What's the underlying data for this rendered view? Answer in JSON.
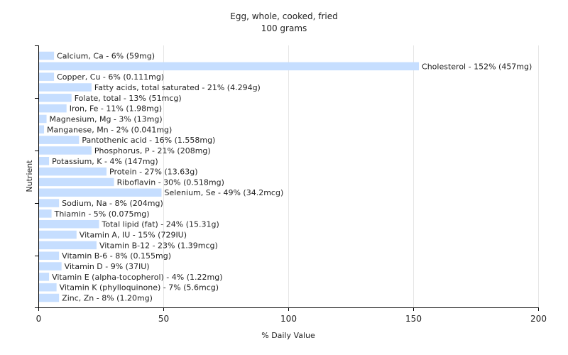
{
  "chart_data": {
    "type": "bar",
    "orientation": "horizontal",
    "title": "Egg, whole, cooked, fried",
    "subtitle": "100 grams",
    "xlabel": "% Daily Value",
    "ylabel": "Nutrient",
    "xlim": [
      0,
      200
    ],
    "xticks": [
      0,
      50,
      100,
      150,
      200
    ],
    "grid": true,
    "bar_color": "#c6deff",
    "categories": [
      "Calcium, Ca",
      "Cholesterol",
      "Copper, Cu",
      "Fatty acids, total saturated",
      "Folate, total",
      "Iron, Fe",
      "Magnesium, Mg",
      "Manganese, Mn",
      "Pantothenic acid",
      "Phosphorus, P",
      "Potassium, K",
      "Protein",
      "Riboflavin",
      "Selenium, Se",
      "Sodium, Na",
      "Thiamin",
      "Total lipid (fat)",
      "Vitamin A, IU",
      "Vitamin B-12",
      "Vitamin B-6",
      "Vitamin D",
      "Vitamin E (alpha-tocopherol)",
      "Vitamin K (phylloquinone)",
      "Zinc, Zn"
    ],
    "values": [
      6,
      152,
      6,
      21,
      13,
      11,
      3,
      2,
      16,
      21,
      4,
      27,
      30,
      49,
      8,
      5,
      24,
      15,
      23,
      8,
      9,
      4,
      7,
      8
    ],
    "labels": [
      "Calcium, Ca - 6% (59mg)",
      "Cholesterol - 152% (457mg)",
      "Copper, Cu - 6% (0.111mg)",
      "Fatty acids, total saturated - 21% (4.294g)",
      "Folate, total - 13% (51mcg)",
      "Iron, Fe - 11% (1.98mg)",
      "Magnesium, Mg - 3% (13mg)",
      "Manganese, Mn - 2% (0.041mg)",
      "Pantothenic acid - 16% (1.558mg)",
      "Phosphorus, P - 21% (208mg)",
      "Potassium, K - 4% (147mg)",
      "Protein - 27% (13.63g)",
      "Riboflavin - 30% (0.518mg)",
      "Selenium, Se - 49% (34.2mcg)",
      "Sodium, Na - 8% (204mg)",
      "Thiamin - 5% (0.075mg)",
      "Total lipid (fat) - 24% (15.31g)",
      "Vitamin A, IU - 15% (729IU)",
      "Vitamin B-12 - 23% (1.39mcg)",
      "Vitamin B-6 - 8% (0.155mg)",
      "Vitamin D - 9% (37IU)",
      "Vitamin E (alpha-tocopherol) - 4% (1.22mg)",
      "Vitamin K (phylloquinone) - 7% (5.6mcg)",
      "Zinc, Zn - 8% (1.20mg)"
    ]
  }
}
